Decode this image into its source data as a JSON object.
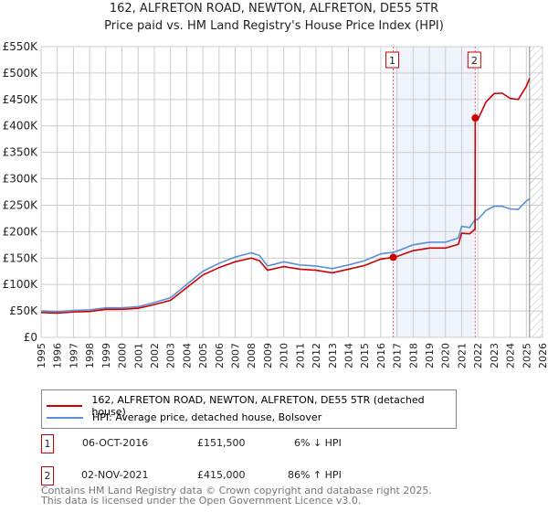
{
  "chart_data": {
    "type": "line",
    "title": "162, ALFRETON ROAD, NEWTON, ALFRETON, DE55 5TR",
    "subtitle": "Price paid vs. HM Land Registry's House Price Index (HPI)",
    "xlim": [
      1995,
      2026
    ],
    "ylim": [
      0,
      550000
    ],
    "yticks": [
      0,
      50000,
      100000,
      150000,
      200000,
      250000,
      300000,
      350000,
      400000,
      450000,
      500000,
      550000
    ],
    "ytick_labels": [
      "£0",
      "£50K",
      "£100K",
      "£150K",
      "£200K",
      "£250K",
      "£300K",
      "£350K",
      "£400K",
      "£450K",
      "£500K",
      "£550K"
    ],
    "xticks": [
      1995,
      1996,
      1997,
      1998,
      1999,
      2000,
      2001,
      2002,
      2003,
      2004,
      2005,
      2006,
      2007,
      2008,
      2009,
      2010,
      2011,
      2012,
      2013,
      2014,
      2015,
      2016,
      2017,
      2018,
      2019,
      2020,
      2021,
      2022,
      2023,
      2024,
      2025,
      2026
    ],
    "grid": true,
    "shaded_period": [
      2016.77,
      2021.84
    ],
    "forecast_hatch_from": 2025.2,
    "series": [
      {
        "name": "162, ALFRETON ROAD, NEWTON, ALFRETON, DE55 5TR (detached house)",
        "color": "#cc0000",
        "x": [
          1995,
          1996,
          1997,
          1998,
          1999,
          2000,
          2001,
          2002,
          2003,
          2004,
          2005,
          2006,
          2007,
          2008,
          2008.5,
          2009,
          2010,
          2011,
          2012,
          2013,
          2014,
          2015,
          2016,
          2016.77,
          2017,
          2018,
          2019,
          2020,
          2020.8,
          2021,
          2021.5,
          2021.83,
          2021.84,
          2022,
          2022.5,
          2023,
          2023.5,
          2024,
          2024.5,
          2025,
          2025.2
        ],
        "y": [
          47000,
          46000,
          48000,
          49000,
          53000,
          53000,
          55000,
          62000,
          70000,
          94000,
          118000,
          132000,
          143000,
          150000,
          145000,
          127000,
          134000,
          129000,
          127000,
          122000,
          129000,
          136000,
          148000,
          151500,
          153000,
          164000,
          169000,
          169000,
          176000,
          197000,
          196000,
          205000,
          415000,
          412000,
          445000,
          461000,
          462000,
          452000,
          450000,
          475000,
          490000
        ]
      },
      {
        "name": "HPI: Average price, detached house, Bolsover",
        "color": "#5b8fd4",
        "x": [
          1995,
          1996,
          1997,
          1998,
          1999,
          2000,
          2001,
          2002,
          2003,
          2004,
          2005,
          2006,
          2007,
          2008,
          2008.5,
          2009,
          2010,
          2011,
          2012,
          2013,
          2014,
          2015,
          2016,
          2016.77,
          2017,
          2018,
          2019,
          2020,
          2020.8,
          2021,
          2021.5,
          2021.84,
          2022,
          2022.5,
          2023,
          2023.5,
          2024,
          2024.5,
          2025,
          2025.2
        ],
        "y": [
          50000,
          49000,
          51000,
          52000,
          56000,
          56000,
          58000,
          66000,
          75000,
          100000,
          125000,
          140000,
          152000,
          160000,
          155000,
          135000,
          143000,
          137000,
          135000,
          130000,
          137000,
          145000,
          158000,
          161000,
          163000,
          175000,
          180000,
          180000,
          188000,
          210000,
          208000,
          223000,
          223000,
          240000,
          248000,
          248000,
          243000,
          242000,
          258000,
          262000
        ]
      }
    ],
    "sales": [
      {
        "label": "1",
        "date": "06-OCT-2016",
        "x": 2016.77,
        "price": "£151,500",
        "value": 151500,
        "hpi": "6% ↓ HPI"
      },
      {
        "label": "2",
        "date": "02-NOV-2021",
        "x": 2021.84,
        "price": "£415,000",
        "value": 415000,
        "hpi": "86% ↑ HPI"
      }
    ]
  },
  "footer": {
    "line1": "Contains HM Land Registry data © Crown copyright and database right 2025.",
    "line2": "This data is licensed under the Open Government Licence v3.0."
  }
}
